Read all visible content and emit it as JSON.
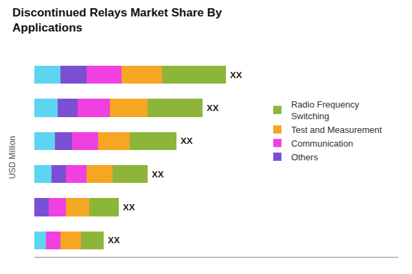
{
  "chart_data": {
    "type": "bar",
    "orientation": "horizontal",
    "stacked": true,
    "title": "Discontinued Relays Market Share By\nApplications",
    "ylabel": "USD Million",
    "categories": [
      null,
      null,
      null,
      null,
      null,
      null
    ],
    "series": [
      {
        "color": "#5DD5F0",
        "values": [
          9,
          8,
          7,
          6,
          0,
          4
        ]
      },
      {
        "name": "Others",
        "color": "#7B4FD4",
        "values": [
          9,
          7,
          6,
          5,
          5,
          0
        ]
      },
      {
        "name": "Communication",
        "color": "#F040E0",
        "values": [
          12,
          11,
          9,
          7,
          6,
          5
        ]
      },
      {
        "name": "Test and Measurement",
        "color": "#F5A623",
        "values": [
          14,
          13,
          11,
          9,
          8,
          7
        ]
      },
      {
        "name": "Radio Frequency\nSwitching",
        "color": "#8DB539",
        "values": [
          22,
          19,
          16,
          12,
          10,
          8
        ]
      }
    ],
    "annotations": [
      "XX",
      "XX",
      "XX",
      "XX",
      "XX",
      "XX"
    ],
    "xlim": [
      0,
      125.4
    ],
    "tick_labels": false,
    "grid": false,
    "legend": "right"
  }
}
